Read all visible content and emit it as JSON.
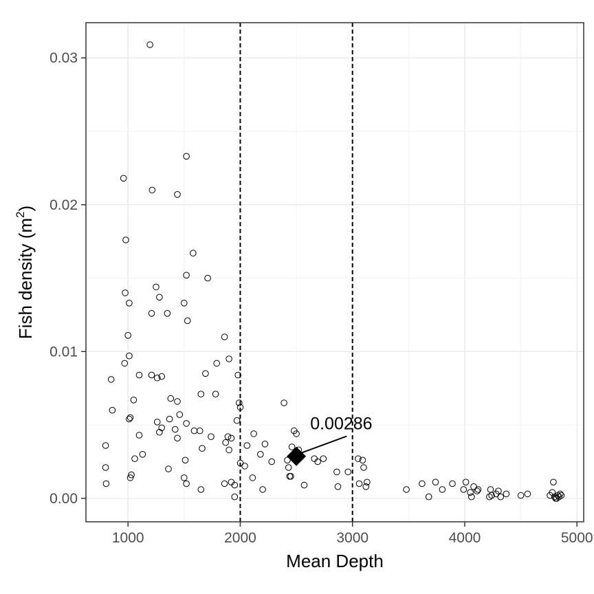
{
  "chart_data": {
    "type": "scatter",
    "title": "",
    "xlabel": "Mean Depth",
    "ylabel": "Fish density (m",
    "ylabel_superscript": "2",
    "ylabel_close": ")",
    "xlim": [
      625,
      5060
    ],
    "ylim": [
      -0.0016,
      0.0324
    ],
    "xticks": [
      1000,
      2000,
      3000,
      4000,
      5000
    ],
    "xtick_labels": [
      "1000",
      "2000",
      "3000",
      "4000",
      "5000"
    ],
    "yticks": [
      0.0,
      0.01,
      0.02,
      0.03
    ],
    "ytick_labels": [
      "0.00",
      "0.01",
      "0.02",
      "0.03"
    ],
    "grid": true,
    "vlines": [
      2000,
      3000
    ],
    "series": [
      {
        "name": "observations",
        "marker": "open-circle",
        "points": [
          [
            1195,
            0.0309
          ],
          [
            960,
            0.0218
          ],
          [
            1520,
            0.0233
          ],
          [
            1215,
            0.021
          ],
          [
            1440,
            0.0207
          ],
          [
            980,
            0.0176
          ],
          [
            1580,
            0.0167
          ],
          [
            1520,
            0.0152
          ],
          [
            1710,
            0.015
          ],
          [
            1250,
            0.0144
          ],
          [
            975,
            0.014
          ],
          [
            1280,
            0.0137
          ],
          [
            1010,
            0.0133
          ],
          [
            1500,
            0.0133
          ],
          [
            1210,
            0.0126
          ],
          [
            1350,
            0.0126
          ],
          [
            1530,
            0.0121
          ],
          [
            1000,
            0.0111
          ],
          [
            1860,
            0.011
          ],
          [
            1010,
            0.0097
          ],
          [
            1900,
            0.0095
          ],
          [
            970,
            0.0092
          ],
          [
            1790,
            0.0092
          ],
          [
            1690,
            0.0085
          ],
          [
            1100,
            0.0084
          ],
          [
            1210,
            0.0084
          ],
          [
            1260,
            0.0082
          ],
          [
            1300,
            0.0083
          ],
          [
            1980,
            0.0084
          ],
          [
            850,
            0.0081
          ],
          [
            1650,
            0.0071
          ],
          [
            1780,
            0.0071
          ],
          [
            1380,
            0.0068
          ],
          [
            1050,
            0.0067
          ],
          [
            1440,
            0.0066
          ],
          [
            1990,
            0.0065
          ],
          [
            2390,
            0.0065
          ],
          [
            2000,
            0.0062
          ],
          [
            860,
            0.006
          ],
          [
            1460,
            0.0057
          ],
          [
            1020,
            0.0055
          ],
          [
            1010,
            0.0054
          ],
          [
            1370,
            0.0054
          ],
          [
            1970,
            0.0053
          ],
          [
            1260,
            0.0052
          ],
          [
            1520,
            0.0051
          ],
          [
            1300,
            0.0048
          ],
          [
            1420,
            0.0047
          ],
          [
            1590,
            0.0046
          ],
          [
            1640,
            0.0046
          ],
          [
            2480,
            0.0046
          ],
          [
            2500,
            0.0044
          ],
          [
            1280,
            0.0045
          ],
          [
            2120,
            0.0044
          ],
          [
            1100,
            0.0043
          ],
          [
            1740,
            0.0042
          ],
          [
            1440,
            0.0041
          ],
          [
            1890,
            0.0042
          ],
          [
            1920,
            0.0041
          ],
          [
            1870,
            0.0038
          ],
          [
            2220,
            0.0037
          ],
          [
            2060,
            0.0036
          ],
          [
            800,
            0.0036
          ],
          [
            1660,
            0.0034
          ],
          [
            1900,
            0.0033
          ],
          [
            2460,
            0.0035
          ],
          [
            2520,
            0.0033
          ],
          [
            2180,
            0.003
          ],
          [
            1130,
            0.003
          ],
          [
            1060,
            0.0027
          ],
          [
            1510,
            0.0026
          ],
          [
            2280,
            0.0025
          ],
          [
            2420,
            0.0026
          ],
          [
            2660,
            0.0027
          ],
          [
            2740,
            0.0027
          ],
          [
            2690,
            0.0025
          ],
          [
            3050,
            0.0027
          ],
          [
            3090,
            0.0026
          ],
          [
            2000,
            0.0024
          ],
          [
            2040,
            0.0022
          ],
          [
            800,
            0.0021
          ],
          [
            2430,
            0.0021
          ],
          [
            3100,
            0.0021
          ],
          [
            1360,
            0.002
          ],
          [
            2860,
            0.0018
          ],
          [
            2960,
            0.0018
          ],
          [
            1030,
            0.0016
          ],
          [
            1020,
            0.0014
          ],
          [
            2440,
            0.0015
          ],
          [
            2450,
            0.0015
          ],
          [
            1500,
            0.0014
          ],
          [
            2110,
            0.0014
          ],
          [
            1860,
            0.001
          ],
          [
            1520,
            0.001
          ],
          [
            1920,
            0.0011
          ],
          [
            3130,
            0.0011
          ],
          [
            3060,
            0.001
          ],
          [
            3120,
            0.0008
          ],
          [
            2570,
            0.0009
          ],
          [
            2870,
            0.0008
          ],
          [
            1950,
            0.0009
          ],
          [
            805,
            0.001
          ],
          [
            1650,
            0.0006
          ],
          [
            2200,
            0.0006
          ],
          [
            3480,
            0.0006
          ],
          [
            3620,
            0.001
          ],
          [
            3740,
            0.0011
          ],
          [
            3890,
            0.001
          ],
          [
            3800,
            0.0006
          ],
          [
            3990,
            0.0006
          ],
          [
            4010,
            0.0011
          ],
          [
            4080,
            0.0008
          ],
          [
            4050,
            0.0004
          ],
          [
            4120,
            0.0006
          ],
          [
            4110,
            0.0005
          ],
          [
            4230,
            0.0006
          ],
          [
            4240,
            0.0002
          ],
          [
            4280,
            0.0003
          ],
          [
            4300,
            0.0005
          ],
          [
            4370,
            0.0003
          ],
          [
            4500,
            0.0002
          ],
          [
            4560,
            0.0003
          ],
          [
            3680,
            0.0001
          ],
          [
            4060,
            0.0001
          ],
          [
            4220,
            0.0001
          ],
          [
            4320,
            0.0001
          ],
          [
            4790,
            0.0011
          ],
          [
            4780,
            0.0004
          ],
          [
            4760,
            0.0002
          ],
          [
            4800,
            0.0001
          ],
          [
            4820,
            0.0
          ],
          [
            4830,
            0.0002
          ],
          [
            4840,
            0.0001
          ],
          [
            4850,
            0.0003
          ],
          [
            4860,
            0.0002
          ],
          [
            4810,
            0.0
          ],
          [
            1950,
            0.0001
          ]
        ]
      },
      {
        "name": "highlight",
        "marker": "filled-diamond",
        "points": [
          [
            2500,
            0.00286
          ]
        ]
      }
    ],
    "annotations": [
      {
        "text": "0.00286",
        "x": 2900,
        "y": 0.0047,
        "arrow_to": [
          2510,
          0.003
        ]
      }
    ]
  }
}
